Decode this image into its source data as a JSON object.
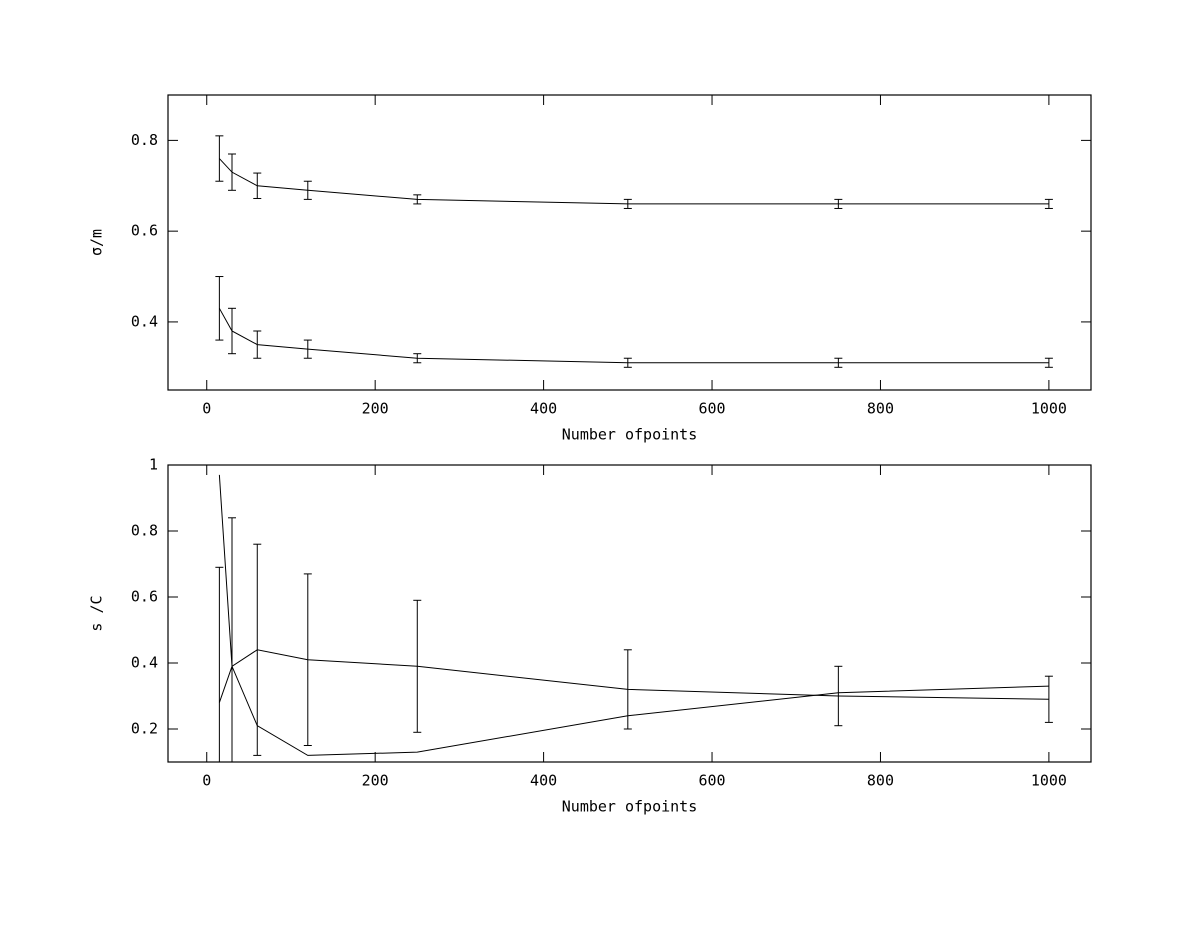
{
  "chart_data": [
    {
      "type": "line",
      "x_label": "Number ofpoints",
      "y_label": "σ/m",
      "x": [
        15,
        30,
        60,
        120,
        250,
        500,
        750,
        1000
      ],
      "series": [
        {
          "color": "#000000",
          "values": [
            0.76,
            0.73,
            0.7,
            0.69,
            0.67,
            0.66,
            0.66,
            0.66
          ],
          "errors": [
            0.05,
            0.04,
            0.028,
            0.02,
            0.01,
            0.01,
            0.01,
            0.01
          ]
        },
        {
          "color": "#000000",
          "values": [
            0.43,
            0.38,
            0.35,
            0.34,
            0.32,
            0.31,
            0.31,
            0.31
          ],
          "errors": [
            0.07,
            0.05,
            0.03,
            0.02,
            0.01,
            0.01,
            0.01,
            0.01
          ]
        }
      ],
      "xlim": [
        -46,
        1050
      ],
      "ylim": [
        0.25,
        0.9
      ],
      "xticks": [
        0,
        200,
        400,
        600,
        800,
        1000
      ],
      "yticks": [
        0.4,
        0.6,
        0.8
      ]
    },
    {
      "type": "line",
      "x_label": "Number ofpoints",
      "y_label": "s /C",
      "x": [
        15,
        30,
        60,
        120,
        250,
        500,
        750,
        1000
      ],
      "series": [
        {
          "color": "#000000",
          "values": [
            0.97,
            0.39,
            0.21,
            0.12,
            0.13,
            0.24,
            0.31,
            0.33
          ]
        },
        {
          "color": "#000000",
          "values": [
            0.28,
            0.39,
            0.44,
            0.41,
            0.39,
            0.32,
            0.3,
            0.29
          ],
          "errors": [
            0.41,
            0.45,
            0.32,
            0.26,
            0.2,
            0.12,
            0.09,
            0.07
          ]
        }
      ],
      "xlim": [
        -46,
        1050
      ],
      "ylim": [
        0.1,
        1.0
      ],
      "xticks": [
        0,
        200,
        400,
        600,
        800,
        1000
      ],
      "yticks": [
        0.2,
        0.4,
        0.6,
        0.8,
        1
      ]
    }
  ]
}
